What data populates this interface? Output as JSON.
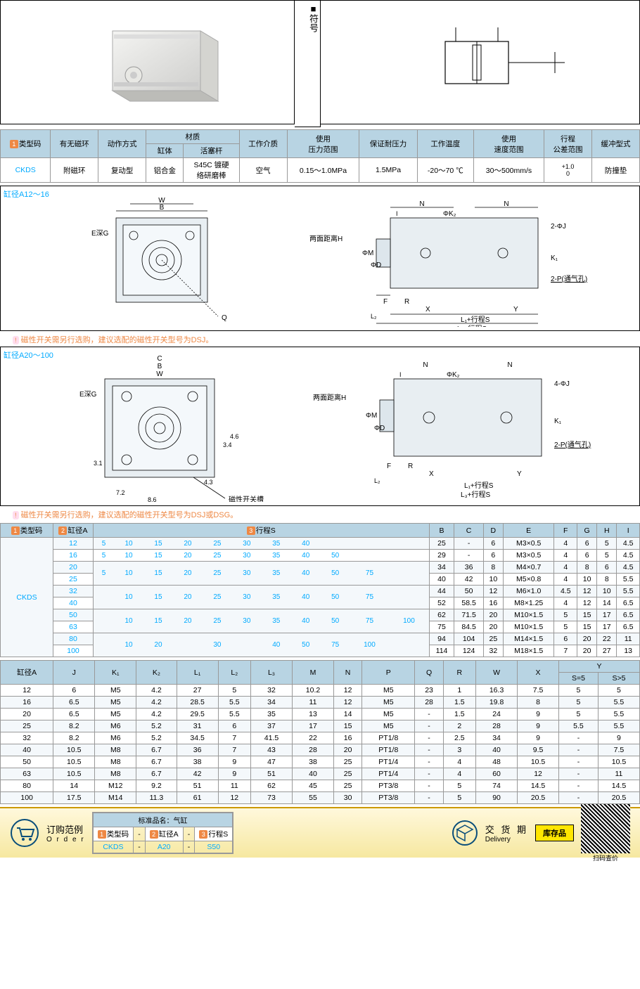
{
  "header": {
    "symbol_label": "■符号"
  },
  "spec_table": {
    "headers": [
      "类型码",
      "有无磁环",
      "动作方式",
      "材质",
      "工作介质",
      "使用\n压力范围",
      "保证耐压力",
      "工作温度",
      "使用\n速度范围",
      "行程\n公差范围",
      "缓冲型式"
    ],
    "sub_headers": [
      "缸体",
      "活塞杆"
    ],
    "row": [
      "CKDS",
      "附磁环",
      "复动型",
      "铝合金",
      "S45C 镀硬\n络研磨棒",
      "空气",
      "0.15～1.0MPa",
      "1.5MPa",
      "-20～70 ℃",
      "30～500mm/s",
      "+1.0\n0",
      "防撞垫"
    ]
  },
  "diagrams": {
    "d1_title": "缸径A12～16",
    "d2_title": "缸径A20～100",
    "dim_labels_1": [
      "B",
      "W",
      "E深G",
      "N",
      "I",
      "ΦK₂",
      "2-ΦJ",
      "两面距离H",
      "ΦM",
      "ΦD",
      "K₁",
      "2-P(通气孔)",
      "F",
      "R",
      "X",
      "Y",
      "L₂",
      "L₁+行程S",
      "L₃+行程S",
      "Q"
    ],
    "dim_labels_2": [
      "C",
      "B",
      "W",
      "E深G",
      "N",
      "I",
      "ΦK₂",
      "4-ΦJ",
      "两面距离H",
      "ΦM",
      "ΦD",
      "K₁",
      "2-P(通气孔)",
      "F",
      "R",
      "X",
      "Y",
      "L₂",
      "L₁+行程S",
      "L₃+行程S",
      "3.1",
      "3.4",
      "4.3",
      "4.6",
      "7.2",
      "8.6",
      "磁性开关槽"
    ],
    "note1": "磁性开关需另行选购，建议选配的磁性开关型号为DSJ。",
    "note2": "磁性开关需另行选购，建议选配的磁性开关型号为DSJ或DSG。"
  },
  "table2": {
    "headers": [
      "类型码",
      "缸径A",
      "行程S",
      "B",
      "C",
      "D",
      "E",
      "F",
      "G",
      "H",
      "I"
    ],
    "model": "CKDS",
    "rows": [
      {
        "a": "12",
        "s": [
          "5",
          "10",
          "15",
          "20",
          "25",
          "30",
          "35",
          "40"
        ],
        "v": [
          "25",
          "-",
          "6",
          "M3×0.5",
          "4",
          "6",
          "5",
          "4.5"
        ]
      },
      {
        "a": "16",
        "s": [
          "5",
          "10",
          "15",
          "20",
          "25",
          "30",
          "35",
          "40",
          "50"
        ],
        "v": [
          "29",
          "-",
          "6",
          "M3×0.5",
          "4",
          "6",
          "5",
          "4.5"
        ]
      },
      {
        "a": "20",
        "s": [
          "5",
          "10",
          "15",
          "20",
          "25",
          "30",
          "35",
          "40",
          "50",
          "75"
        ],
        "sr": 2,
        "v": [
          "34",
          "36",
          "8",
          "M4×0.7",
          "4",
          "8",
          "6",
          "4.5"
        ]
      },
      {
        "a": "25",
        "v": [
          "40",
          "42",
          "10",
          "M5×0.8",
          "4",
          "10",
          "8",
          "5.5"
        ]
      },
      {
        "a": "32",
        "s": [
          "",
          "10",
          "15",
          "20",
          "25",
          "30",
          "35",
          "40",
          "50",
          "75"
        ],
        "sr": 2,
        "v": [
          "44",
          "50",
          "12",
          "M6×1.0",
          "4.5",
          "12",
          "10",
          "5.5"
        ]
      },
      {
        "a": "40",
        "v": [
          "52",
          "58.5",
          "16",
          "M8×1.25",
          "4",
          "12",
          "14",
          "6.5"
        ]
      },
      {
        "a": "50",
        "s": [
          "",
          "10",
          "15",
          "20",
          "25",
          "30",
          "35",
          "40",
          "50",
          "75",
          "100"
        ],
        "sr": 2,
        "v": [
          "62",
          "71.5",
          "20",
          "M10×1.5",
          "5",
          "15",
          "17",
          "6.5"
        ]
      },
      {
        "a": "63",
        "v": [
          "75",
          "84.5",
          "20",
          "M10×1.5",
          "5",
          "15",
          "17",
          "6.5"
        ]
      },
      {
        "a": "80",
        "s": [
          "",
          "10",
          "20",
          "",
          "30",
          "",
          "40",
          "50",
          "75",
          "100"
        ],
        "sr": 2,
        "v": [
          "94",
          "104",
          "25",
          "M14×1.5",
          "6",
          "20",
          "22",
          "11"
        ]
      },
      {
        "a": "100",
        "v": [
          "114",
          "124",
          "32",
          "M18×1.5",
          "7",
          "20",
          "27",
          "13"
        ]
      }
    ]
  },
  "table3": {
    "headers": [
      "缸径A",
      "J",
      "K₁",
      "K₂",
      "L₁",
      "L₂",
      "L₃",
      "M",
      "N",
      "P",
      "Q",
      "R",
      "W",
      "X",
      "Y"
    ],
    "yh": [
      "S=5",
      "S>5"
    ],
    "rows": [
      [
        "12",
        "6",
        "M5",
        "4.2",
        "27",
        "5",
        "32",
        "10.2",
        "12",
        "M5",
        "23",
        "1",
        "16.3",
        "7.5",
        "5",
        "5"
      ],
      [
        "16",
        "6.5",
        "M5",
        "4.2",
        "28.5",
        "5.5",
        "34",
        "11",
        "12",
        "M5",
        "28",
        "1.5",
        "19.8",
        "8",
        "5",
        "5.5"
      ],
      [
        "20",
        "6.5",
        "M5",
        "4.2",
        "29.5",
        "5.5",
        "35",
        "13",
        "14",
        "M5",
        "-",
        "1.5",
        "24",
        "9",
        "5",
        "5.5"
      ],
      [
        "25",
        "8.2",
        "M6",
        "5.2",
        "31",
        "6",
        "37",
        "17",
        "15",
        "M5",
        "-",
        "2",
        "28",
        "9",
        "5.5",
        "5.5"
      ],
      [
        "32",
        "8.2",
        "M6",
        "5.2",
        "34.5",
        "7",
        "41.5",
        "22",
        "16",
        "PT1/8",
        "-",
        "2.5",
        "34",
        "9",
        "-",
        "9"
      ],
      [
        "40",
        "10.5",
        "M8",
        "6.7",
        "36",
        "7",
        "43",
        "28",
        "20",
        "PT1/8",
        "-",
        "3",
        "40",
        "9.5",
        "-",
        "7.5"
      ],
      [
        "50",
        "10.5",
        "M8",
        "6.7",
        "38",
        "9",
        "47",
        "38",
        "25",
        "PT1/4",
        "-",
        "4",
        "48",
        "10.5",
        "-",
        "10.5"
      ],
      [
        "63",
        "10.5",
        "M8",
        "6.7",
        "42",
        "9",
        "51",
        "40",
        "25",
        "PT1/4",
        "-",
        "4",
        "60",
        "12",
        "-",
        "11"
      ],
      [
        "80",
        "14",
        "M12",
        "9.2",
        "51",
        "11",
        "62",
        "45",
        "25",
        "PT3/8",
        "-",
        "5",
        "74",
        "14.5",
        "-",
        "14.5"
      ],
      [
        "100",
        "17.5",
        "M14",
        "11.3",
        "61",
        "12",
        "73",
        "55",
        "30",
        "PT3/8",
        "-",
        "5",
        "90",
        "20.5",
        "-",
        "20.5"
      ]
    ]
  },
  "footer": {
    "order_cn": "订购范例",
    "order_en": "O r d e r",
    "std_name": "标准品名：气缸",
    "h": [
      "类型码",
      "缸径A",
      "行程S"
    ],
    "v": [
      "CKDS",
      "A20",
      "S50"
    ],
    "deliv_cn": "交 货 期",
    "deliv_en": "Delivery",
    "stock": "库存品",
    "scan": "扫码查价"
  },
  "colors": {
    "hdr": "#b8d4e3",
    "orange": "#e84",
    "blue": "#0af",
    "footer": "#f6e8a0"
  }
}
